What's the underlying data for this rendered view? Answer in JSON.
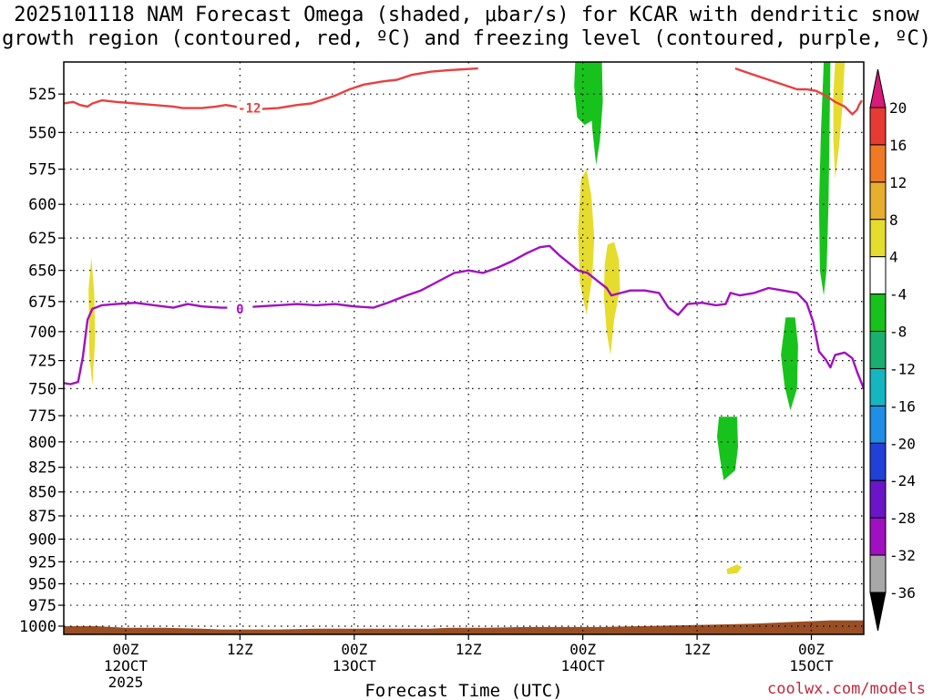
{
  "chart_data": {
    "type": "time-height contour",
    "title_line1": "2025101118 NAM Forecast Omega (shaded, μbar/s) for KCAR with dendritic snow",
    "title_line2": "growth region (contoured, red, ºC) and freezing level (contoured, purple, ºC)",
    "xlabel": "Forecast Time (UTC)",
    "ylabel": "",
    "y_scale": "log-pressure (inverted)",
    "y_ticks": [
      525,
      550,
      575,
      600,
      625,
      650,
      675,
      700,
      725,
      750,
      775,
      800,
      825,
      850,
      875,
      900,
      925,
      950,
      975,
      1000
    ],
    "ylim": [
      1010,
      505
    ],
    "grid": true,
    "x_ticks": [
      {
        "hour": 0,
        "label1": "00Z",
        "label2": "12OCT",
        "label3": "2025"
      },
      {
        "hour": 12,
        "label1": "12Z",
        "label2": "",
        "label3": ""
      },
      {
        "hour": 24,
        "label1": "00Z",
        "label2": "13OCT",
        "label3": ""
      },
      {
        "hour": 36,
        "label1": "12Z",
        "label2": "",
        "label3": ""
      },
      {
        "hour": 48,
        "label1": "00Z",
        "label2": "14OCT",
        "label3": ""
      },
      {
        "hour": 60,
        "label1": "12Z",
        "label2": "",
        "label3": ""
      },
      {
        "hour": 72,
        "label1": "00Z",
        "label2": "15OCT",
        "label3": ""
      }
    ],
    "xlim": [
      -6.5,
      77.5
    ],
    "colorbar": {
      "labels": [
        20,
        16,
        12,
        8,
        4,
        -4,
        -8,
        -12,
        -16,
        -20,
        -24,
        -28,
        -32,
        -36
      ],
      "colors": [
        "#d81a7a",
        "#e63a32",
        "#f07a24",
        "#e8ae2e",
        "#e6dc2e",
        "#ffffff",
        "#18c21c",
        "#18b070",
        "#16b6c0",
        "#1e8ee6",
        "#2040d8",
        "#6a16c8",
        "#a010c0",
        "#a8a8a8",
        "#000000"
      ]
    },
    "contours": [
      {
        "name": "dendritic snow growth (-12 °C)",
        "label": "-12",
        "color": "#e84040",
        "points": [
          [
            -6.5,
            531
          ],
          [
            -5.5,
            530
          ],
          [
            -4.8,
            532
          ],
          [
            -4.0,
            533
          ],
          [
            -3.5,
            531
          ],
          [
            -2.5,
            529
          ],
          [
            -1.0,
            530
          ],
          [
            1.0,
            531
          ],
          [
            3.0,
            532
          ],
          [
            5.0,
            533
          ],
          [
            6.0,
            534
          ],
          [
            8.0,
            534
          ],
          [
            9.5,
            533
          ],
          [
            10.5,
            532
          ],
          [
            11.5,
            533
          ],
          [
            13.0,
            535
          ],
          [
            16.0,
            534
          ],
          [
            18.0,
            532
          ],
          [
            19.5,
            531
          ],
          [
            21.0,
            528
          ],
          [
            22.0,
            526
          ],
          [
            23.5,
            522
          ],
          [
            25.0,
            519
          ],
          [
            27.0,
            517
          ],
          [
            28.5,
            516
          ],
          [
            30.0,
            513
          ],
          [
            32.0,
            511
          ],
          [
            34.0,
            510
          ],
          [
            37.0,
            509
          ]
        ],
        "points2": [
          [
            64.0,
            509
          ],
          [
            66.0,
            513
          ],
          [
            67.5,
            516
          ],
          [
            69.0,
            519
          ],
          [
            70.5,
            522
          ],
          [
            71.5,
            522
          ],
          [
            72.5,
            523
          ],
          [
            73.5,
            526
          ],
          [
            74.5,
            530
          ],
          [
            75.5,
            533
          ],
          [
            76.3,
            538
          ],
          [
            76.8,
            535
          ],
          [
            77.0,
            532
          ],
          [
            77.3,
            529
          ]
        ],
        "label_hour": 13.0,
        "label_p": 534
      },
      {
        "name": "freezing level (0 °C)",
        "label": "0",
        "color": "#a010c0",
        "points": [
          [
            -6.5,
            745
          ],
          [
            -5.8,
            746
          ],
          [
            -5.0,
            744
          ],
          [
            -4.5,
            722
          ],
          [
            -4.0,
            690
          ],
          [
            -3.5,
            681
          ],
          [
            -2.5,
            678
          ],
          [
            -1.0,
            677
          ],
          [
            1.0,
            676
          ],
          [
            3.0,
            678
          ],
          [
            5.0,
            680
          ],
          [
            6.5,
            677
          ],
          [
            8.0,
            679
          ],
          [
            10.0,
            680
          ],
          [
            12.0,
            680
          ],
          [
            14.0,
            679
          ],
          [
            16.0,
            678
          ],
          [
            18.0,
            677
          ],
          [
            20.0,
            678
          ],
          [
            22.0,
            677
          ],
          [
            24.0,
            679
          ],
          [
            26.0,
            680
          ],
          [
            27.5,
            676
          ],
          [
            29.5,
            670
          ],
          [
            31.0,
            666
          ],
          [
            32.5,
            660
          ],
          [
            34.5,
            652
          ],
          [
            36.0,
            650
          ],
          [
            37.5,
            652
          ],
          [
            39.0,
            648
          ],
          [
            40.5,
            643
          ],
          [
            42.0,
            637
          ],
          [
            43.5,
            632
          ],
          [
            44.5,
            631
          ],
          [
            45.5,
            638
          ],
          [
            46.5,
            644
          ],
          [
            47.5,
            650
          ],
          [
            48.5,
            652
          ],
          [
            49.5,
            658
          ],
          [
            50.5,
            664
          ],
          [
            51.0,
            670
          ],
          [
            52.0,
            668
          ],
          [
            53.0,
            666
          ],
          [
            54.5,
            666
          ],
          [
            56.0,
            668
          ],
          [
            57.0,
            680
          ],
          [
            58.0,
            686
          ],
          [
            59.0,
            677
          ],
          [
            60.5,
            676
          ],
          [
            62.0,
            678
          ],
          [
            63.0,
            677
          ],
          [
            63.5,
            668
          ],
          [
            64.5,
            670
          ],
          [
            66.0,
            668
          ],
          [
            67.5,
            664
          ],
          [
            69.0,
            666
          ],
          [
            70.5,
            668
          ],
          [
            71.5,
            676
          ],
          [
            72.2,
            692
          ],
          [
            72.8,
            717
          ],
          [
            73.5,
            724
          ],
          [
            74.0,
            731
          ],
          [
            74.5,
            720
          ],
          [
            75.5,
            718
          ],
          [
            76.3,
            723
          ],
          [
            76.8,
            735
          ],
          [
            77.5,
            750
          ]
        ],
        "label_hour": 12.0,
        "label_p": 681
      }
    ],
    "shaded_regions": [
      {
        "name": "yellow 4 (left)",
        "color": "#e6dc2e",
        "points": [
          [
            -3.9,
            665
          ],
          [
            -3.6,
            640
          ],
          [
            -3.3,
            668
          ],
          [
            -3.2,
            705
          ],
          [
            -3.5,
            748
          ],
          [
            -3.8,
            720
          ]
        ]
      },
      {
        "name": "green -4 (top mid)",
        "color": "#18c21c",
        "points": [
          [
            47.2,
            505
          ],
          [
            48.6,
            505
          ],
          [
            49.2,
            525
          ],
          [
            49.0,
            542
          ],
          [
            48.2,
            545
          ],
          [
            47.4,
            540
          ],
          [
            47.1,
            520
          ]
        ]
      },
      {
        "name": "green -4 (top mid 2)",
        "color": "#18c21c",
        "points": [
          [
            48.6,
            505
          ],
          [
            50.0,
            505
          ],
          [
            50.1,
            530
          ],
          [
            49.8,
            555
          ],
          [
            49.4,
            572
          ],
          [
            49.0,
            548
          ],
          [
            48.8,
            525
          ]
        ]
      },
      {
        "name": "yellow 4 (mid)",
        "color": "#e6dc2e",
        "points": [
          [
            47.8,
            582
          ],
          [
            48.4,
            575
          ],
          [
            48.9,
            594
          ],
          [
            49.2,
            625
          ],
          [
            49.0,
            655
          ],
          [
            48.4,
            686
          ],
          [
            47.7,
            660
          ],
          [
            47.5,
            620
          ]
        ]
      },
      {
        "name": "yellow 4 (mid 2)",
        "color": "#e6dc2e",
        "points": [
          [
            50.6,
            630
          ],
          [
            51.3,
            628
          ],
          [
            51.8,
            642
          ],
          [
            51.9,
            665
          ],
          [
            51.3,
            690
          ],
          [
            50.9,
            720
          ],
          [
            50.5,
            700
          ],
          [
            50.2,
            670
          ],
          [
            50.3,
            645
          ]
        ]
      },
      {
        "name": "green -4 (right top)",
        "color": "#18c21c",
        "points": [
          [
            73.3,
            505
          ],
          [
            74.0,
            505
          ],
          [
            73.9,
            550
          ],
          [
            73.8,
            600
          ],
          [
            73.6,
            650
          ],
          [
            73.3,
            670
          ],
          [
            72.9,
            650
          ],
          [
            72.8,
            600
          ],
          [
            73.0,
            550
          ]
        ]
      },
      {
        "name": "yellow 4 (right top)",
        "color": "#e6dc2e",
        "points": [
          [
            74.5,
            505
          ],
          [
            75.5,
            505
          ],
          [
            75.3,
            530
          ],
          [
            74.9,
            560
          ],
          [
            74.5,
            582
          ],
          [
            74.3,
            555
          ],
          [
            74.3,
            525
          ]
        ]
      },
      {
        "name": "green -4 (right mid)",
        "color": "#18c21c",
        "points": [
          [
            69.3,
            688
          ],
          [
            70.3,
            688
          ],
          [
            70.6,
            712
          ],
          [
            70.5,
            750
          ],
          [
            69.8,
            770
          ],
          [
            69.2,
            748
          ],
          [
            68.8,
            720
          ]
        ]
      },
      {
        "name": "green -4 (lower)",
        "color": "#18c21c",
        "points": [
          [
            62.3,
            776
          ],
          [
            64.2,
            776
          ],
          [
            64.3,
            805
          ],
          [
            64.0,
            828
          ],
          [
            62.8,
            838
          ],
          [
            62.4,
            816
          ],
          [
            62.1,
            795
          ]
        ]
      },
      {
        "name": "yellow 4 (low)",
        "color": "#e6dc2e",
        "points": [
          [
            63.1,
            933
          ],
          [
            64.2,
            928
          ],
          [
            64.7,
            931
          ],
          [
            64.2,
            938
          ],
          [
            63.2,
            939
          ]
        ]
      }
    ],
    "terrain": {
      "color": "#9a4e24",
      "points": [
        [
          -6.5,
          1000
        ],
        [
          -3.0,
          1000
        ],
        [
          0,
          1002
        ],
        [
          4.0,
          1002
        ],
        [
          8.0,
          1003
        ],
        [
          10.0,
          1004
        ],
        [
          16.0,
          1004
        ],
        [
          20.0,
          1003
        ],
        [
          24.0,
          1003
        ],
        [
          28.0,
          1003
        ],
        [
          32.0,
          1003
        ],
        [
          34.0,
          1002
        ],
        [
          36.0,
          1002
        ],
        [
          38.0,
          1002
        ],
        [
          42.0,
          1001
        ],
        [
          46.0,
          1001
        ],
        [
          50.0,
          1001
        ],
        [
          54.0,
          1000
        ],
        [
          58.0,
          999
        ],
        [
          62.0,
          998
        ],
        [
          66.0,
          997
        ],
        [
          70.0,
          995
        ],
        [
          74.0,
          993
        ],
        [
          77.5,
          993
        ]
      ]
    }
  },
  "credit": "coolwx.com/models"
}
